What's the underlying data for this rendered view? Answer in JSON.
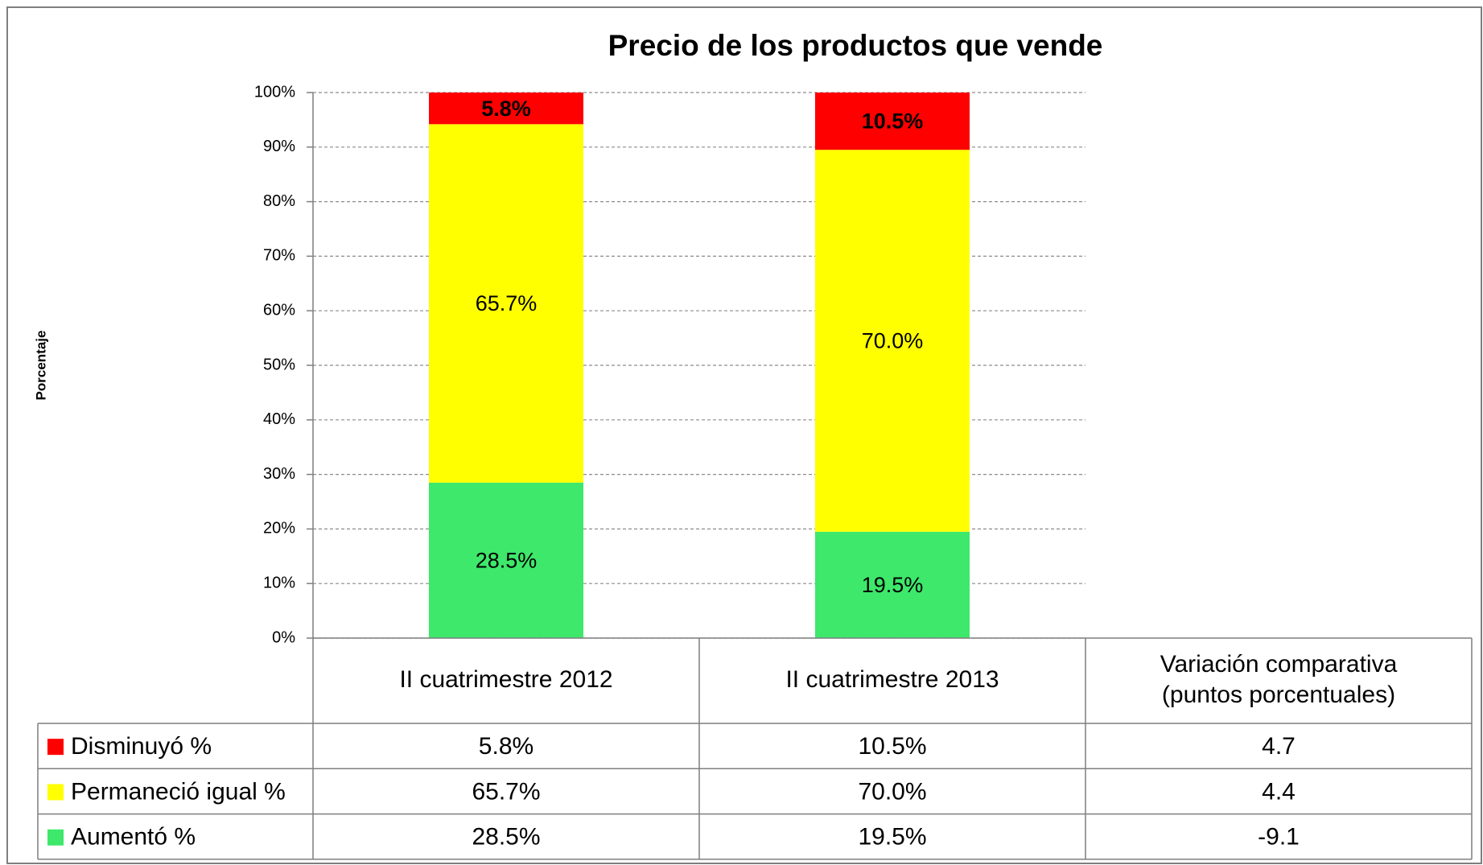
{
  "chart_data": {
    "type": "stacked_bar",
    "title": "Precio de los productos que vende",
    "y_label": "Porcentaje",
    "categories": [
      "II cuatrimestre 2012",
      "II cuatrimestre 2013"
    ],
    "variation_label": [
      "Variación comparativa",
      "(puntos porcentuales)"
    ],
    "series": [
      {
        "name": "Disminuyó %",
        "color": "#ff0000",
        "values": [
          5.8,
          10.5
        ],
        "value_labels": [
          "5.8%",
          "10.5%"
        ],
        "variation": 4.7
      },
      {
        "name": "Permaneció igual %",
        "color": "#ffff00",
        "values": [
          65.7,
          70.0
        ],
        "value_labels": [
          "65.7%",
          "70.0%"
        ],
        "variation": 4.4
      },
      {
        "name": "Aumentó %",
        "color": "#3de86b",
        "values": [
          28.5,
          19.5
        ],
        "value_labels": [
          "28.5%",
          "19.5%"
        ],
        "variation": -9.1
      }
    ],
    "ylim": [
      0,
      100
    ],
    "yticks": [
      {
        "value": 0,
        "label": "0%"
      },
      {
        "value": 10,
        "label": "10%"
      },
      {
        "value": 20,
        "label": "20%"
      },
      {
        "value": 30,
        "label": "30%"
      },
      {
        "value": 40,
        "label": "40%"
      },
      {
        "value": 50,
        "label": "50%"
      },
      {
        "value": 60,
        "label": "60%"
      },
      {
        "value": 70,
        "label": "70%"
      },
      {
        "value": 80,
        "label": "80%"
      },
      {
        "value": 90,
        "label": "90%"
      },
      {
        "value": 100,
        "label": "100%"
      }
    ],
    "grid": true
  }
}
